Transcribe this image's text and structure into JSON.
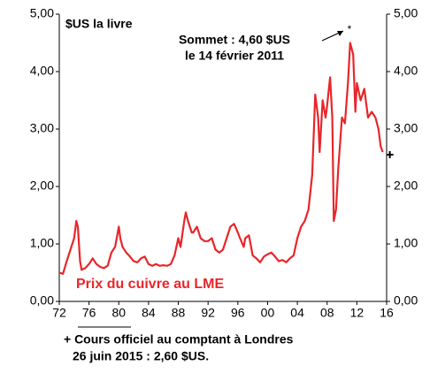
{
  "chart_data": {
    "type": "line",
    "title": "$US la livre",
    "annotations": [
      "Sommet : 4,60 $US",
      "le 14 février 2011",
      "Prix du cuivre au LME"
    ],
    "footnote": [
      "+ Cours officiel au comptant à Londres",
      "26 juin 2015 : 2,60 $US."
    ],
    "series": [
      {
        "name": "Prix du cuivre au LME",
        "color": "#e8262a",
        "x": [
          1972,
          1972.5,
          1973,
          1973.5,
          1974,
          1974.3,
          1974.5,
          1974.8,
          1975,
          1975.5,
          1976,
          1976.5,
          1977,
          1977.5,
          1978,
          1978.5,
          1979,
          1979.5,
          1980,
          1980.2,
          1980.5,
          1981,
          1981.5,
          1982,
          1982.5,
          1983,
          1983.5,
          1984,
          1984.5,
          1985,
          1985.5,
          1986,
          1986.5,
          1987,
          1987.5,
          1988,
          1988.3,
          1988.8,
          1989,
          1989.3,
          1989.8,
          1990,
          1990.5,
          1991,
          1991.5,
          1992,
          1992.5,
          1993,
          1993.5,
          1994,
          1994.5,
          1995,
          1995.5,
          1996,
          1996.3,
          1996.8,
          1997,
          1997.5,
          1998,
          1998.5,
          1999,
          1999.5,
          2000,
          2000.5,
          2001,
          2001.5,
          2002,
          2002.5,
          2003,
          2003.5,
          2004,
          2004.5,
          2005,
          2005.5,
          2006,
          2006.4,
          2006.8,
          2007,
          2007.4,
          2007.8,
          2008,
          2008.4,
          2008.7,
          2008.9,
          2009.2,
          2009.5,
          2010,
          2010.4,
          2010.8,
          2011.1,
          2011.5,
          2011.8,
          2012,
          2012.5,
          2013,
          2013.5,
          2014,
          2014.5,
          2014.9,
          2015.2,
          2015.48
        ],
        "values": [
          0.5,
          0.48,
          0.7,
          0.9,
          1.1,
          1.4,
          1.3,
          0.7,
          0.55,
          0.58,
          0.65,
          0.75,
          0.65,
          0.6,
          0.58,
          0.62,
          0.85,
          0.95,
          1.3,
          1.1,
          0.95,
          0.85,
          0.78,
          0.7,
          0.68,
          0.75,
          0.78,
          0.65,
          0.62,
          0.65,
          0.62,
          0.63,
          0.62,
          0.65,
          0.8,
          1.1,
          0.95,
          1.4,
          1.55,
          1.4,
          1.2,
          1.2,
          1.3,
          1.1,
          1.05,
          1.05,
          1.1,
          0.9,
          0.85,
          0.9,
          1.1,
          1.3,
          1.35,
          1.2,
          1.1,
          0.95,
          1.1,
          1.15,
          0.8,
          0.75,
          0.68,
          0.78,
          0.82,
          0.85,
          0.78,
          0.7,
          0.72,
          0.68,
          0.75,
          0.8,
          1.1,
          1.3,
          1.4,
          1.6,
          2.2,
          3.6,
          3.2,
          2.6,
          3.5,
          3.2,
          3.4,
          3.9,
          3.2,
          1.4,
          1.6,
          2.3,
          3.2,
          3.1,
          3.8,
          4.5,
          4.3,
          3.3,
          3.8,
          3.5,
          3.7,
          3.2,
          3.3,
          3.2,
          3.0,
          2.7,
          2.6
        ]
      }
    ],
    "point": {
      "x": 2015.48,
      "y": 2.6
    },
    "xlim": [
      1972,
      2016
    ],
    "xticks": [
      {
        "value": 1972,
        "label": "72"
      },
      {
        "value": 1976,
        "label": "76"
      },
      {
        "value": 1980,
        "label": "80"
      },
      {
        "value": 1984,
        "label": "84"
      },
      {
        "value": 1988,
        "label": "88"
      },
      {
        "value": 1992,
        "label": "92"
      },
      {
        "value": 1996,
        "label": "96"
      },
      {
        "value": 2000,
        "label": "00"
      },
      {
        "value": 2004,
        "label": "04"
      },
      {
        "value": 2008,
        "label": "08"
      },
      {
        "value": 2012,
        "label": "12"
      },
      {
        "value": 2016,
        "label": "16"
      }
    ],
    "ylim": [
      0,
      5
    ],
    "yticks": [
      {
        "value": 0,
        "label": "0,00"
      },
      {
        "value": 1,
        "label": "1,00"
      },
      {
        "value": 2,
        "label": "2,00"
      },
      {
        "value": 3,
        "label": "3,00"
      },
      {
        "value": 4,
        "label": "4,00"
      },
      {
        "value": 5,
        "label": "5,00"
      }
    ]
  }
}
